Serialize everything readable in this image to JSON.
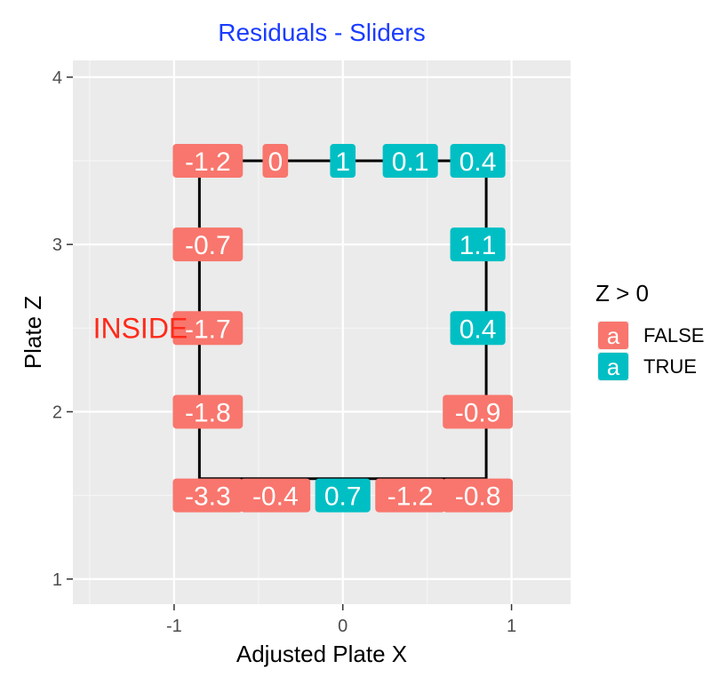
{
  "chart_data": {
    "type": "scatter",
    "title": "Residuals - Sliders",
    "xlabel": "Adjusted Plate X",
    "ylabel": "Plate Z",
    "xlim": [
      -1.6,
      1.35
    ],
    "ylim": [
      0.85,
      4.1
    ],
    "x_ticks": [
      -1,
      0,
      1
    ],
    "y_ticks": [
      1,
      2,
      3,
      4
    ],
    "grid": true,
    "legend": {
      "title": "Z > 0",
      "position": "right",
      "key_glyph": "a",
      "entries": [
        {
          "label": "FALSE",
          "color": "#F8766D"
        },
        {
          "label": "TRUE",
          "color": "#00BFC4"
        }
      ]
    },
    "annotation": {
      "text": "INSIDE",
      "x": -1.2,
      "y": 2.5,
      "color": "#FF2A1A"
    },
    "strike_zone": {
      "x": [
        -0.85,
        0.85
      ],
      "y": [
        1.6,
        3.5
      ]
    },
    "colors": {
      "false": "#F8766D",
      "true": "#00BFC4",
      "title": "#1A3CFF",
      "panel": "#EBEBEB"
    },
    "points": [
      {
        "x": -0.8,
        "y": 3.5,
        "label": "-1.2",
        "positive": false
      },
      {
        "x": -0.4,
        "y": 3.5,
        "label": "0",
        "positive": false
      },
      {
        "x": 0.0,
        "y": 3.5,
        "label": "1",
        "positive": true
      },
      {
        "x": 0.4,
        "y": 3.5,
        "label": "0.1",
        "positive": true
      },
      {
        "x": 0.8,
        "y": 3.5,
        "label": "0.4",
        "positive": true
      },
      {
        "x": -0.8,
        "y": 3.0,
        "label": "-0.7",
        "positive": false
      },
      {
        "x": 0.8,
        "y": 3.0,
        "label": "1.1",
        "positive": true
      },
      {
        "x": -0.8,
        "y": 2.5,
        "label": "-1.7",
        "positive": false
      },
      {
        "x": 0.8,
        "y": 2.5,
        "label": "0.4",
        "positive": true
      },
      {
        "x": -0.8,
        "y": 2.0,
        "label": "-1.8",
        "positive": false
      },
      {
        "x": 0.8,
        "y": 2.0,
        "label": "-0.9",
        "positive": false
      },
      {
        "x": -0.8,
        "y": 1.5,
        "label": "-3.3",
        "positive": false
      },
      {
        "x": -0.4,
        "y": 1.5,
        "label": "-0.4",
        "positive": false
      },
      {
        "x": 0.0,
        "y": 1.5,
        "label": "0.7",
        "positive": true
      },
      {
        "x": 0.4,
        "y": 1.5,
        "label": "-1.2",
        "positive": false
      },
      {
        "x": 0.8,
        "y": 1.5,
        "label": "-0.8",
        "positive": false
      }
    ]
  }
}
